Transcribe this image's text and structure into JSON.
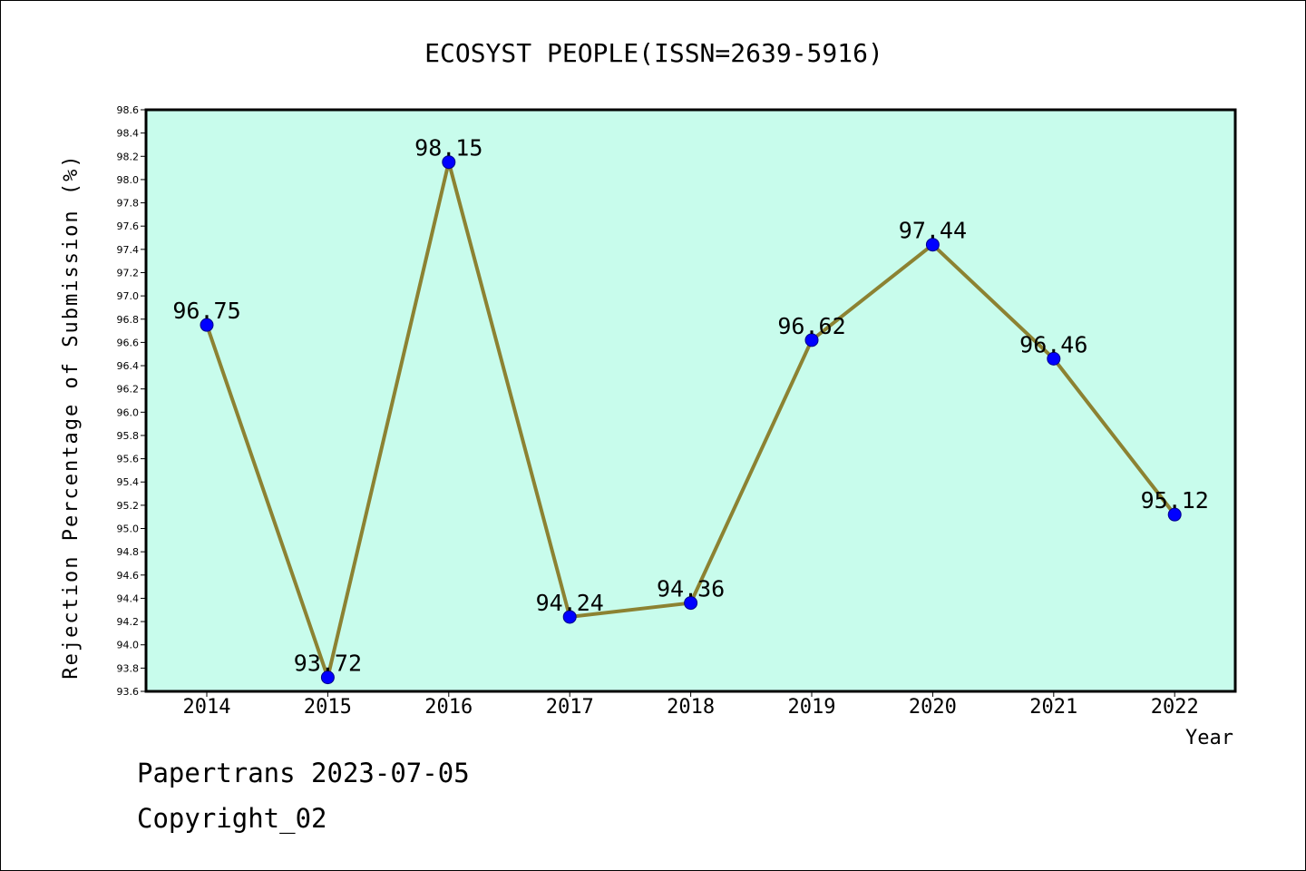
{
  "chart_data": {
    "type": "line",
    "title": "ECOSYST PEOPLE(ISSN=2639-5916)",
    "xlabel": "Year",
    "ylabel": "Rejection Percentage of Submission (%)",
    "categories": [
      "2014",
      "2015",
      "2016",
      "2017",
      "2018",
      "2019",
      "2020",
      "2021",
      "2022"
    ],
    "series": [
      {
        "values": [
          96.75,
          93.72,
          98.15,
          94.24,
          94.36,
          96.62,
          97.44,
          96.46,
          95.12
        ]
      }
    ],
    "data_labels": [
      "96.75",
      "93.72",
      "98.15",
      "94.24",
      "94.36",
      "96.62",
      "97.44",
      "96.46",
      "95.12"
    ],
    "ylim": [
      93.6,
      98.6
    ],
    "ytick_step": 0.2,
    "yticks": [
      "93.6",
      "93.8",
      "94.0",
      "94.2",
      "94.4",
      "94.6",
      "94.8",
      "95.0",
      "95.2",
      "95.4",
      "95.6",
      "95.8",
      "96.0",
      "96.2",
      "96.4",
      "96.6",
      "96.8",
      "97.0",
      "97.2",
      "97.4",
      "97.6",
      "97.8",
      "98.0",
      "98.2",
      "98.4",
      "98.6"
    ],
    "grid": false,
    "legend": "none",
    "colors": {
      "plot_background": "#c8fcec",
      "line": "#8c8232",
      "marker": "#0000ff"
    }
  },
  "footer": {
    "line1": "Papertrans 2023-07-05",
    "line2": "Copyright_02"
  }
}
